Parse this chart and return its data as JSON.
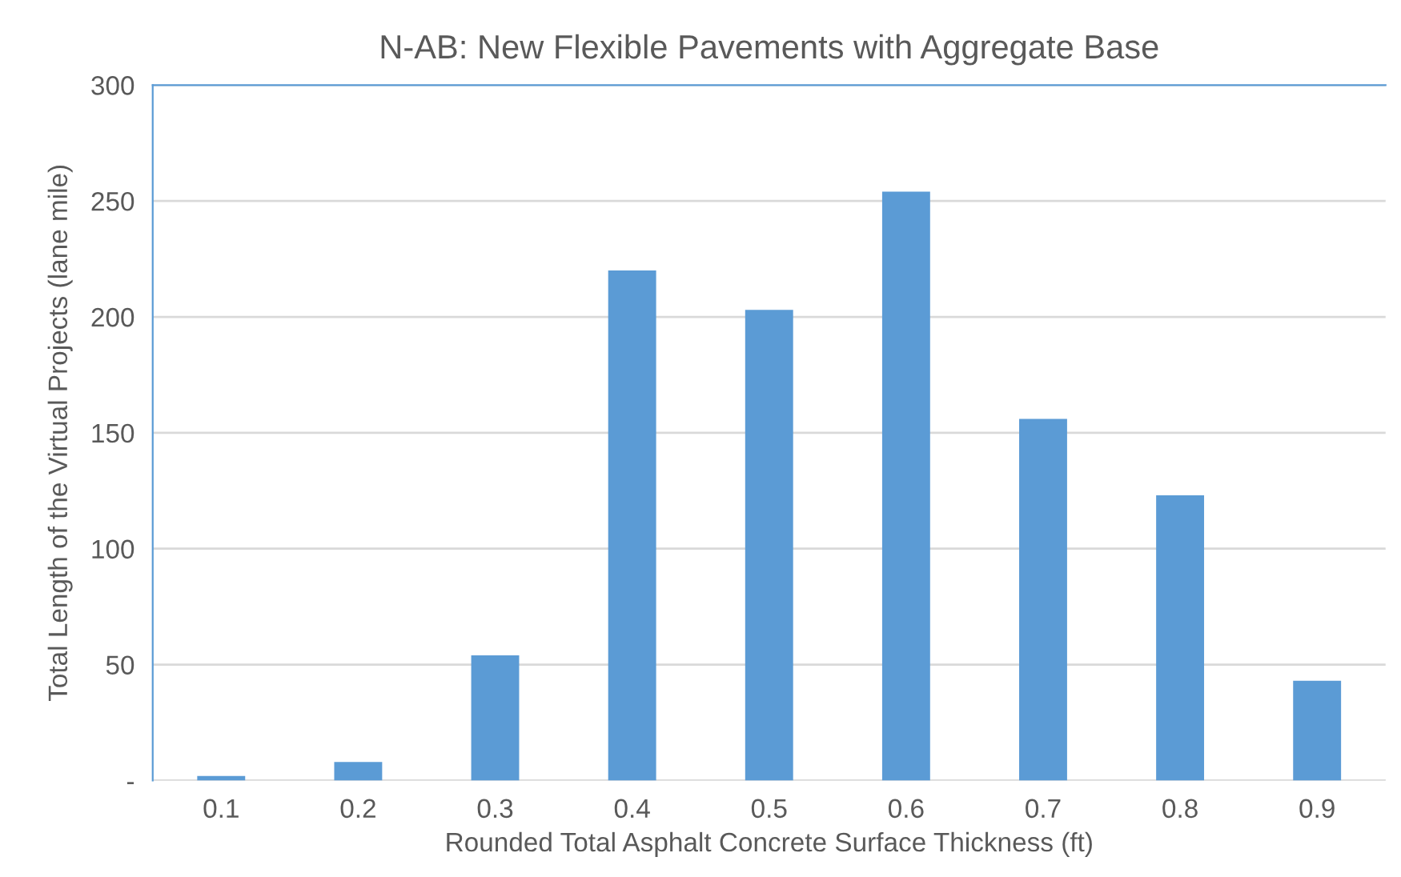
{
  "chart_data": {
    "type": "bar",
    "title": "N-AB: New Flexible Pavements with Aggregate Base",
    "xlabel": "Rounded Total Asphalt Concrete Surface Thickness (ft)",
    "ylabel": "Total Length of the Virtual Projects (lane mile)",
    "categories": [
      "0.1",
      "0.2",
      "0.3",
      "0.4",
      "0.5",
      "0.6",
      "0.7",
      "0.8",
      "0.9"
    ],
    "values": [
      2,
      8,
      54,
      220,
      203,
      254,
      156,
      123,
      43
    ],
    "color": "#5b9bd5",
    "ylim": [
      0,
      300
    ],
    "yticks": [
      {
        "value": 0,
        "label": "-"
      },
      50,
      100,
      150,
      200,
      250,
      300
    ],
    "grid": "y"
  }
}
